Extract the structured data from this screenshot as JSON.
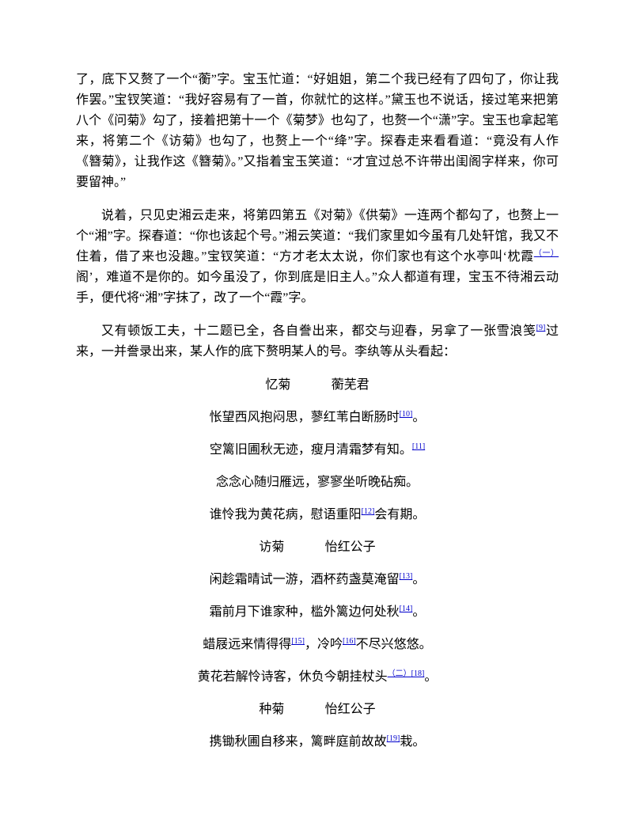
{
  "paragraphs": [
    [
      "了，底下又赘了一个“蘅”字。宝玉忙道：“好姐姐，第二个我已经有了四句了，你让我作罢。”宝钗笑道：“我好容易有了一首，你就忙的这样。”黛玉也不说话，接过笔来把第八个《问菊》勾了，接着把第十一个《菊梦》也勾了，也赘一个“潇”字。宝玉也拿起笔来，将第二个《访菊》也勾了，也赘上一个“绛”字。探春走来看看道：“竟没有人作《簪菊》，让我作这《簪菊》。”又指着宝玉笑道：“才宜过总不许带出闺阁字样来，你可要留神。”"
    ],
    [
      "说着，只见史湘云走来，将第四第五《对菊》《供菊》一连两个都勾了，也赘上一个“湘”字。探春道：“你也该起个号。”湘云笑道：“我们家里如今虽有几处轩馆，我又不住着，借了来也没趣。”宝钗笑道：“方才老太太说，你们家也有这个水亭叫‘枕霞",
      "（一）",
      "阁’，难道不是你的。如今虽没了，你到底是旧主人。”众人都道有理，宝玉不待湘云动手，便代将“湘”字抹了，改了一个“霞”字。"
    ],
    [
      "又有顿饭工夫，十二题已全，各自誊出来，都交与迎春，另拿了一张雪浪笺",
      "[9]",
      "过来，一并誊录出来，某人作的底下赘明某人的号。李纨等从头看起："
    ]
  ],
  "poems": [
    {
      "title": "忆菊",
      "author": "蘅芜君",
      "lines": [
        [
          "怅望西风抱闷思，蓼红苇白断肠时",
          "[10]",
          "。"
        ],
        [
          "空篱旧圃秋无迹，瘦月清霜梦有知。",
          "[11]"
        ],
        [
          "念念心随归雁远，寥寥坐听晚砧痴。"
        ],
        [
          "谁怜我为黄花病，慰语重阳",
          "[12]",
          "会有期。"
        ]
      ]
    },
    {
      "title": "访菊",
      "author": "怡红公子",
      "lines": [
        [
          "闲趁霜晴试一游，酒杯药盏莫淹留",
          "[13]",
          "。"
        ],
        [
          "霜前月下谁家种，槛外篱边何处秋",
          "[14]",
          "。"
        ],
        [
          "蜡屐远来情得得",
          "[15]",
          "，冷吟",
          "[16]",
          "不尽兴悠悠。"
        ],
        [
          "黄花若解怜诗客，休负今朝挂杖头",
          "（二）",
          "[18]",
          "。"
        ]
      ]
    },
    {
      "title": "种菊",
      "author": "怡红公子",
      "lines": [
        [
          "携锄秋圃自移来，篱畔庭前故故",
          "[19]",
          "栽。"
        ]
      ]
    }
  ]
}
